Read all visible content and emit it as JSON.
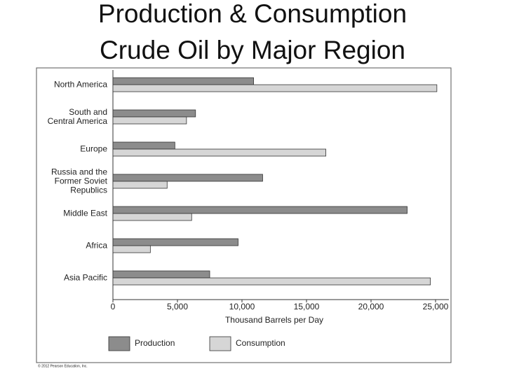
{
  "chart_data": {
    "type": "hbar",
    "title": "Production & Consumption\nCrude Oil by Major Region",
    "categories": [
      "North America",
      "South and\nCentral America",
      "Europe",
      "Russia and the\nFormer Soviet\nRepublics",
      "Middle East",
      "Africa",
      "Asia Pacific"
    ],
    "series": [
      {
        "name": "Production",
        "color": "#8c8c8c",
        "values": [
          10900,
          6400,
          4800,
          11600,
          22800,
          9700,
          7500
        ]
      },
      {
        "name": "Consumption",
        "color": "#d6d6d6",
        "values": [
          25100,
          5700,
          16500,
          4200,
          6100,
          2900,
          24600
        ]
      }
    ],
    "xlim": [
      0,
      25000
    ],
    "xticks": [
      0,
      {
        "value": 5000,
        "label": "5,000"
      },
      {
        "value": 10000,
        "label": "10,000"
      },
      {
        "value": 15000,
        "label": "15,000"
      },
      {
        "value": 20000,
        "label": "20,000"
      },
      {
        "value": 25000,
        "label": "25,000"
      }
    ],
    "xlabel": "Thousand Barrels per Day",
    "credit": "© 2012 Pearson Education, Inc."
  }
}
